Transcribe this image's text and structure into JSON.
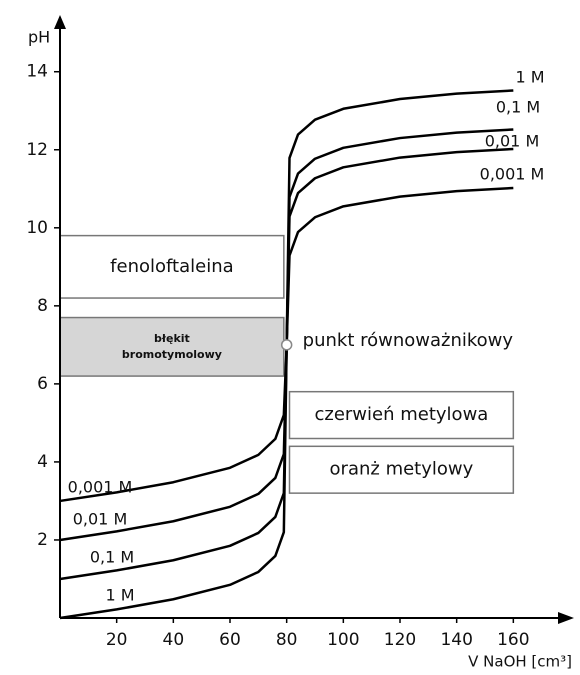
{
  "chart_data": {
    "type": "line",
    "y_label": "pH",
    "x_label": "V NaOH [cm³]",
    "xlim": [
      0,
      180
    ],
    "ylim": [
      0,
      15.3
    ],
    "xticks": [
      20,
      40,
      60,
      80,
      100,
      120,
      140,
      160
    ],
    "yticks": [
      2,
      4,
      6,
      8,
      10,
      12,
      14
    ],
    "x": [
      0,
      20,
      40,
      60,
      70,
      76,
      79,
      80,
      81,
      84,
      90,
      100,
      120,
      140,
      160
    ],
    "series": [
      {
        "name": "1 M",
        "color": "#000000",
        "values": [
          0,
          0.22,
          0.48,
          0.85,
          1.18,
          1.59,
          2.2,
          7,
          11.79,
          12.39,
          12.77,
          13.05,
          13.3,
          13.44,
          13.52
        ]
      },
      {
        "name": "0,1 M",
        "color": "#000000",
        "values": [
          1,
          1.22,
          1.48,
          1.85,
          2.18,
          2.59,
          3.2,
          7,
          10.79,
          11.39,
          11.77,
          12.05,
          12.3,
          12.44,
          12.52
        ]
      },
      {
        "name": "0,01 M",
        "color": "#000000",
        "values": [
          2,
          2.22,
          2.48,
          2.85,
          3.18,
          3.59,
          4.2,
          7,
          10.29,
          10.89,
          11.27,
          11.55,
          11.8,
          11.94,
          12.02
        ]
      },
      {
        "name": "0,001 M",
        "color": "#000000",
        "values": [
          3,
          3.22,
          3.48,
          3.85,
          4.18,
          4.59,
          5.2,
          7,
          9.29,
          9.89,
          10.27,
          10.55,
          10.8,
          10.94,
          11.02
        ]
      }
    ],
    "indicators": [
      {
        "label": [
          "fenoloftaleina"
        ],
        "range": [
          8.2,
          9.8
        ],
        "xrange": [
          0,
          79
        ],
        "color": "#ffffff"
      },
      {
        "label": [
          "błękit",
          "bromotymolowy"
        ],
        "range": [
          6.2,
          7.7
        ],
        "xrange": [
          0,
          79
        ],
        "color": "#d6d6d6"
      },
      {
        "label": [
          "czerwień metylowa"
        ],
        "range": [
          4.6,
          5.8
        ],
        "xrange": [
          81,
          160
        ],
        "color": "#ffffff"
      },
      {
        "label": [
          "oranż metylowy"
        ],
        "range": [
          3.2,
          4.4
        ],
        "xrange": [
          81,
          160
        ],
        "color": "#ffffff"
      }
    ],
    "equivalence_point": {
      "label": "punkt równoważnikowy",
      "x": 80,
      "y": 7
    }
  }
}
